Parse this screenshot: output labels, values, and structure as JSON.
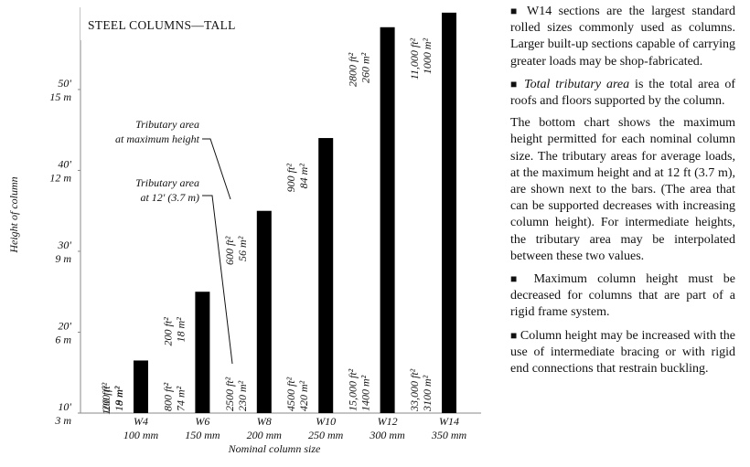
{
  "chart_data": {
    "type": "bar",
    "title": "STEEL COLUMNS—TALL",
    "y_axis_label": "Height of column",
    "x_axis_label": "Nominal column size",
    "categories": [
      "W4",
      "W6",
      "W8",
      "W10",
      "W12",
      "W14"
    ],
    "category_sublabels": [
      "100 mm",
      "150 mm",
      "200 mm",
      "250 mm",
      "300 mm",
      "350 mm"
    ],
    "values": [
      16.5,
      25,
      35,
      44,
      57.7,
      59.5
    ],
    "color": "#000000",
    "ylim": [
      10,
      60.5
    ],
    "yticks": [
      {
        "value": 10,
        "label": "10'"
      },
      {
        "value": 20,
        "label": "20'"
      },
      {
        "value": 30,
        "label": "30'"
      },
      {
        "value": 40,
        "label": "40'"
      },
      {
        "value": 50,
        "label": "50'"
      }
    ],
    "ytick_metric_labels": [
      "3 m",
      "6 m",
      "9 m",
      "12 m",
      "15 m"
    ],
    "area_at_max_height": [
      [
        "100 ft²",
        "9 m²"
      ],
      [
        "200 ft²",
        "18 m²"
      ],
      [
        "600 ft²",
        "56 m²"
      ],
      [
        "900 ft²",
        "84 m²"
      ],
      [
        "2800 ft²",
        "260 m²"
      ],
      [
        "11,000 ft²",
        "1000 m²"
      ]
    ],
    "area_at_12ft": [
      [
        "200 ft²",
        "18 m²"
      ],
      [
        "800 ft²",
        "74 m²"
      ],
      [
        "2500 ft²",
        "230 m²"
      ],
      [
        "4500 ft²",
        "420 m²"
      ],
      [
        "15,000 ft²",
        "1400 m²"
      ],
      [
        "33,000 ft²",
        "3100 m²"
      ]
    ],
    "callout_max": [
      "Tributary area",
      "at maximum height"
    ],
    "callout_12ft": [
      "Tributary area",
      "at 12' (3.7 m)"
    ]
  },
  "sidebar": [
    {
      "bullet": true,
      "text": "W14 sections are the largest standard rolled sizes commonly used as columns. Larger built-up sections capable of carrying greater loads may be shop-fabricated."
    },
    {
      "bullet": true,
      "italic": "Total tributary area",
      "text": " is the total area of roofs and floors supported by the column."
    },
    {
      "bullet": false,
      "text": "The bottom chart shows the maximum height permitted for each nominal column size. The tributary areas for average loads, at the maximum height and at 12 ft (3.7 m), are shown next to the bars. (The area that can be supported decreases with increasing column height). For intermediate heights, the tributary area may be interpolated between these two values."
    },
    {
      "bullet": true,
      "text": "Maximum column height must be decreased for columns that are part of a rigid frame system."
    },
    {
      "bullet": true,
      "text": "Column height may be increased with the use of intermediate bracing or with rigid end connections that restrain buckling."
    }
  ]
}
